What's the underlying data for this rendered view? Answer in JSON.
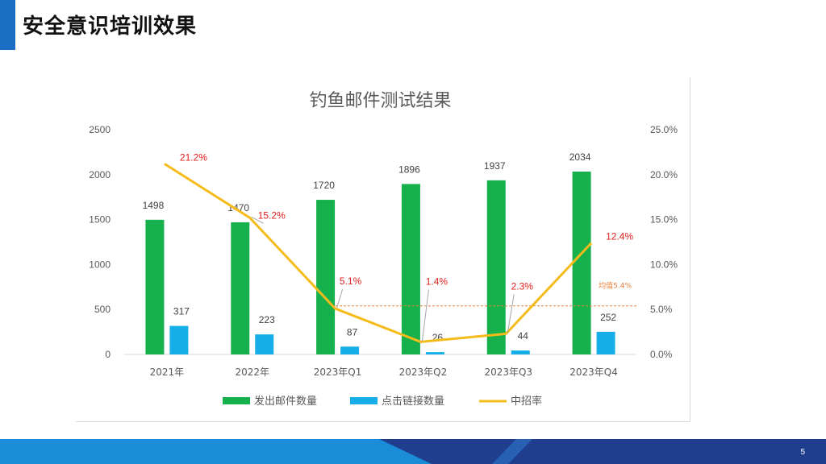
{
  "slide": {
    "title": "安全意识培训效果",
    "page_number": "5"
  },
  "colors": {
    "accent_bar": "#1a6fc4",
    "sent_bar": "#16b04d",
    "click_bar": "#16aee8",
    "rate_line": "#f5bb1a",
    "avg_line": "#e8823c",
    "rate_label": "#e0201b",
    "footer_light": "#1b8cd8",
    "footer_dark": "#1f3f8e"
  },
  "chart_data": {
    "type": "bar",
    "title": "钓鱼邮件测试结果",
    "categories": [
      "2021年",
      "2022年",
      "2023年Q1",
      "2023年Q2",
      "2023年Q3",
      "2023年Q4"
    ],
    "series": [
      {
        "name": "发出邮件数量",
        "type": "bar",
        "axis": "left",
        "values": [
          1498,
          1470,
          1720,
          1896,
          1937,
          2034
        ]
      },
      {
        "name": "点击链接数量",
        "type": "bar",
        "axis": "left",
        "values": [
          317,
          223,
          87,
          26,
          44,
          252
        ]
      },
      {
        "name": "中招率",
        "type": "line",
        "axis": "right",
        "values": [
          21.2,
          15.2,
          5.1,
          1.4,
          2.3,
          12.4
        ],
        "labels": [
          "21.2%",
          "15.2%",
          "5.1%",
          "1.4%",
          "2.3%",
          "12.4%"
        ]
      }
    ],
    "left_axis": {
      "ylim": [
        0,
        2500
      ],
      "ticks": [
        "0",
        "500",
        "1000",
        "1500",
        "2000",
        "2500"
      ]
    },
    "right_axis": {
      "ylim": [
        0,
        25
      ],
      "ticks": [
        "0.0%",
        "5.0%",
        "10.0%",
        "15.0%",
        "20.0%",
        "25.0%"
      ]
    },
    "average_line": {
      "value": 5.4,
      "label": "均值5.4%"
    },
    "legend_position": "bottom",
    "grid": false
  }
}
